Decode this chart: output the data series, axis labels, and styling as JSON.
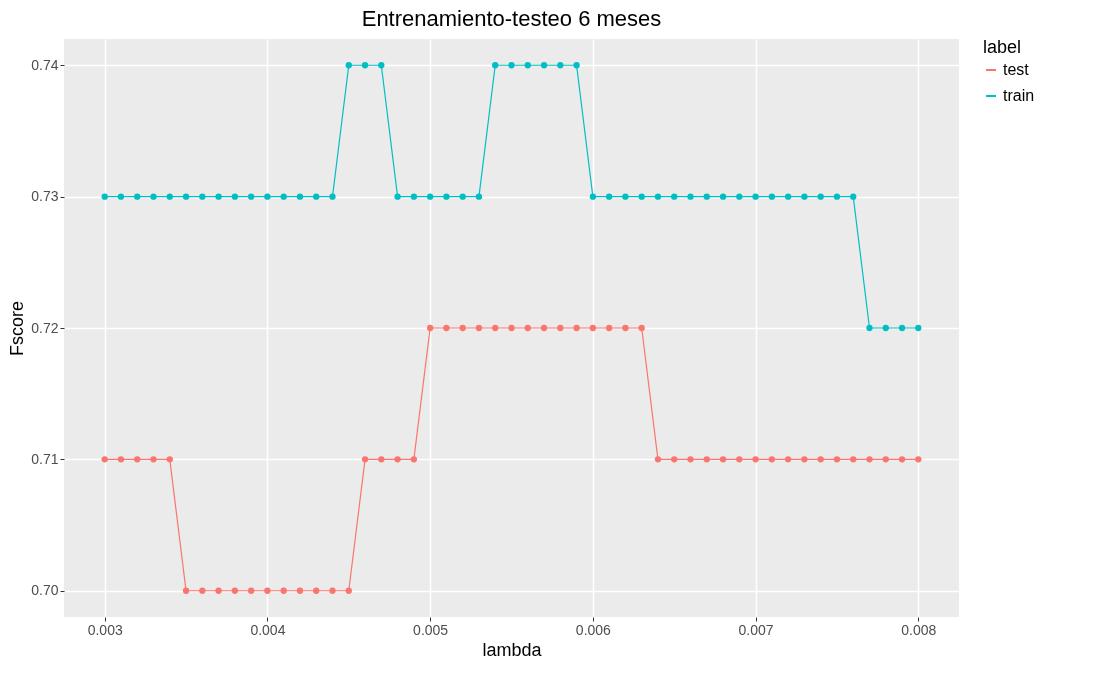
{
  "chart_data": {
    "type": "line",
    "title": "Entrenamiento-testeo 6 meses",
    "xlabel": "lambda",
    "ylabel": "Fscore",
    "legend_title": "label",
    "x": [
      0.003,
      0.0031,
      0.0032,
      0.0033,
      0.0034,
      0.0035,
      0.0036,
      0.0037,
      0.0038,
      0.0039,
      0.004,
      0.0041,
      0.0042,
      0.0043,
      0.0044,
      0.0045,
      0.0046,
      0.0047,
      0.0048,
      0.0049,
      0.005,
      0.0051,
      0.0052,
      0.0053,
      0.0054,
      0.0055,
      0.0056,
      0.0057,
      0.0058,
      0.0059,
      0.006,
      0.0061,
      0.0062,
      0.0063,
      0.0064,
      0.0065,
      0.0066,
      0.0067,
      0.0068,
      0.0069,
      0.007,
      0.0071,
      0.0072,
      0.0073,
      0.0074,
      0.0075,
      0.0076,
      0.0077,
      0.0078,
      0.0079,
      0.008
    ],
    "series": [
      {
        "name": "test",
        "color": "#f8766d",
        "values": [
          0.71,
          0.71,
          0.71,
          0.71,
          0.71,
          0.7,
          0.7,
          0.7,
          0.7,
          0.7,
          0.7,
          0.7,
          0.7,
          0.7,
          0.7,
          0.7,
          0.71,
          0.71,
          0.71,
          0.71,
          0.72,
          0.72,
          0.72,
          0.72,
          0.72,
          0.72,
          0.72,
          0.72,
          0.72,
          0.72,
          0.72,
          0.72,
          0.72,
          0.72,
          0.71,
          0.71,
          0.71,
          0.71,
          0.71,
          0.71,
          0.71,
          0.71,
          0.71,
          0.71,
          0.71,
          0.71,
          0.71,
          0.71,
          0.71,
          0.71,
          0.71
        ]
      },
      {
        "name": "train",
        "color": "#00bfc4",
        "values": [
          0.73,
          0.73,
          0.73,
          0.73,
          0.73,
          0.73,
          0.73,
          0.73,
          0.73,
          0.73,
          0.73,
          0.73,
          0.73,
          0.73,
          0.73,
          0.74,
          0.74,
          0.74,
          0.73,
          0.73,
          0.73,
          0.73,
          0.73,
          0.73,
          0.74,
          0.74,
          0.74,
          0.74,
          0.74,
          0.74,
          0.73,
          0.73,
          0.73,
          0.73,
          0.73,
          0.73,
          0.73,
          0.73,
          0.73,
          0.73,
          0.73,
          0.73,
          0.73,
          0.73,
          0.73,
          0.73,
          0.73,
          0.72,
          0.72,
          0.72,
          0.72
        ]
      }
    ],
    "xlim": [
      0.00275,
      0.00825
    ],
    "xticks": [
      0.003,
      0.004,
      0.005,
      0.006,
      0.007,
      0.008
    ],
    "ylim": [
      0.698,
      0.742
    ],
    "yticks": [
      {
        "value": 0.7,
        "label": "0.70"
      },
      0.71,
      0.72,
      0.73,
      0.74
    ],
    "grid": true,
    "legend": "right",
    "marker": "circle",
    "line_style": "solid"
  }
}
